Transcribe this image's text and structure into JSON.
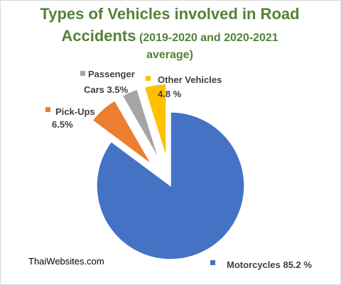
{
  "title": {
    "main": "Types of Vehicles involved in Road",
    "main2": "Accidents",
    "sub": "(2019-2020 and 2020-2021",
    "sub2": "average)"
  },
  "credit": "ThaiWebsites.com",
  "chart_data": {
    "type": "pie",
    "title": "Types of Vehicles involved in Road Accidents (2019-2020 and 2020-2021 average)",
    "slices": [
      {
        "label": "Motorcycles",
        "value": 85.2,
        "display": "85.2 %",
        "color": "#4472c4"
      },
      {
        "label": "Pick-Ups",
        "value": 6.5,
        "display": "6.5%",
        "color": "#ed7d31"
      },
      {
        "label": "Passenger Cars",
        "value": 3.5,
        "display": "3.5%",
        "color": "#a5a5a5"
      },
      {
        "label": "Other Vehicles",
        "value": 4.8,
        "display": "4.8 %",
        "color": "#ffc000"
      }
    ],
    "legend": "data labels with markers",
    "exploded": true
  }
}
